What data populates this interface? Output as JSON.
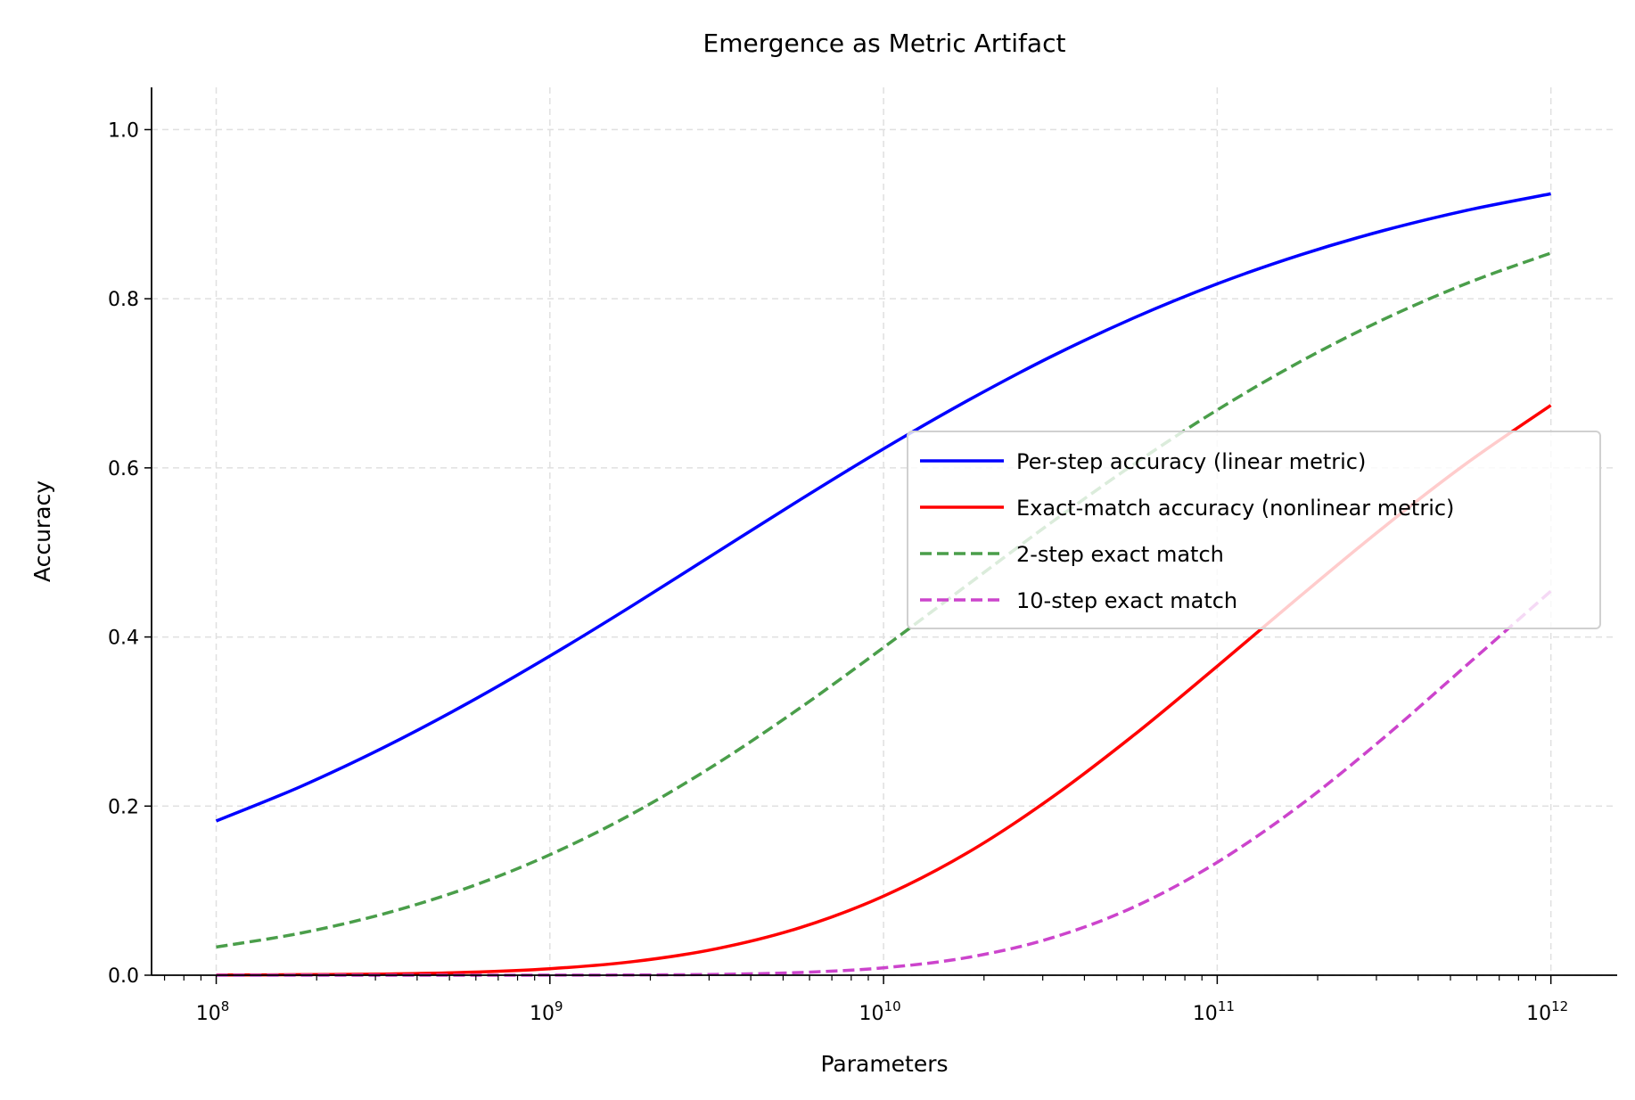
{
  "chart_data": {
    "type": "line",
    "title": "Emergence as Metric Artifact",
    "xlabel": "Parameters",
    "ylabel": "Accuracy",
    "xscale": "log",
    "xlim": [
      64000000.0,
      1580000000000.0
    ],
    "ylim": [
      0,
      1.05
    ],
    "grid": true,
    "legend_placement": "center-right",
    "x_ticks": [
      {
        "base": "10",
        "exp": "8"
      },
      {
        "base": "10",
        "exp": "9"
      },
      {
        "base": "10",
        "exp": "10"
      },
      {
        "base": "10",
        "exp": "11"
      },
      {
        "base": "10",
        "exp": "12"
      }
    ],
    "y_ticks": [
      "0.0",
      "0.2",
      "0.4",
      "0.6",
      "0.8",
      "1.0"
    ],
    "x": [
      100000000.0,
      178000000.0,
      316000000.0,
      562000000.0,
      1000000000.0,
      1780000000.0,
      3160000000.0,
      5620000000.0,
      10000000000.0,
      17800000000.0,
      31600000000.0,
      56200000000.0,
      100000000000.0,
      178000000000.0,
      316000000000.0,
      562000000000.0,
      1000000000000.0
    ],
    "series": [
      {
        "name": "Per-step accuracy (linear metric)",
        "color": "#0000ff",
        "style": "solid",
        "values": [
          0.1824,
          0.2227,
          0.2689,
          0.3208,
          0.3775,
          0.4378,
          0.5,
          0.5622,
          0.6225,
          0.6792,
          0.7311,
          0.7773,
          0.8176,
          0.852,
          0.8808,
          0.9047,
          0.9241
        ]
      },
      {
        "name": "Exact-match accuracy (nonlinear metric)",
        "color": "#ff0000",
        "style": "solid",
        "values": [
          0.0002,
          0.0006,
          0.0014,
          0.0034,
          0.0077,
          0.0161,
          0.0313,
          0.0562,
          0.0935,
          0.1445,
          0.2089,
          0.2838,
          0.3654,
          0.4489,
          0.5301,
          0.6061,
          0.674
        ]
      },
      {
        "name": "2-step exact match",
        "color": "#4a9e4a",
        "style": "dashed",
        "values": [
          0.0333,
          0.0496,
          0.0723,
          0.1029,
          0.1425,
          0.1917,
          0.25,
          0.3161,
          0.3875,
          0.4613,
          0.5345,
          0.6042,
          0.6685,
          0.7259,
          0.7758,
          0.8185,
          0.854
        ]
      },
      {
        "name": "10-step exact match",
        "color": "#cc44cc",
        "style": "dashed",
        "values": [
          0.0,
          0.0,
          0.0,
          0.0,
          0.0001,
          0.0003,
          0.001,
          0.0032,
          0.0087,
          0.0209,
          0.0436,
          0.0805,
          0.1335,
          0.2015,
          0.281,
          0.3674,
          0.4543
        ]
      }
    ]
  }
}
